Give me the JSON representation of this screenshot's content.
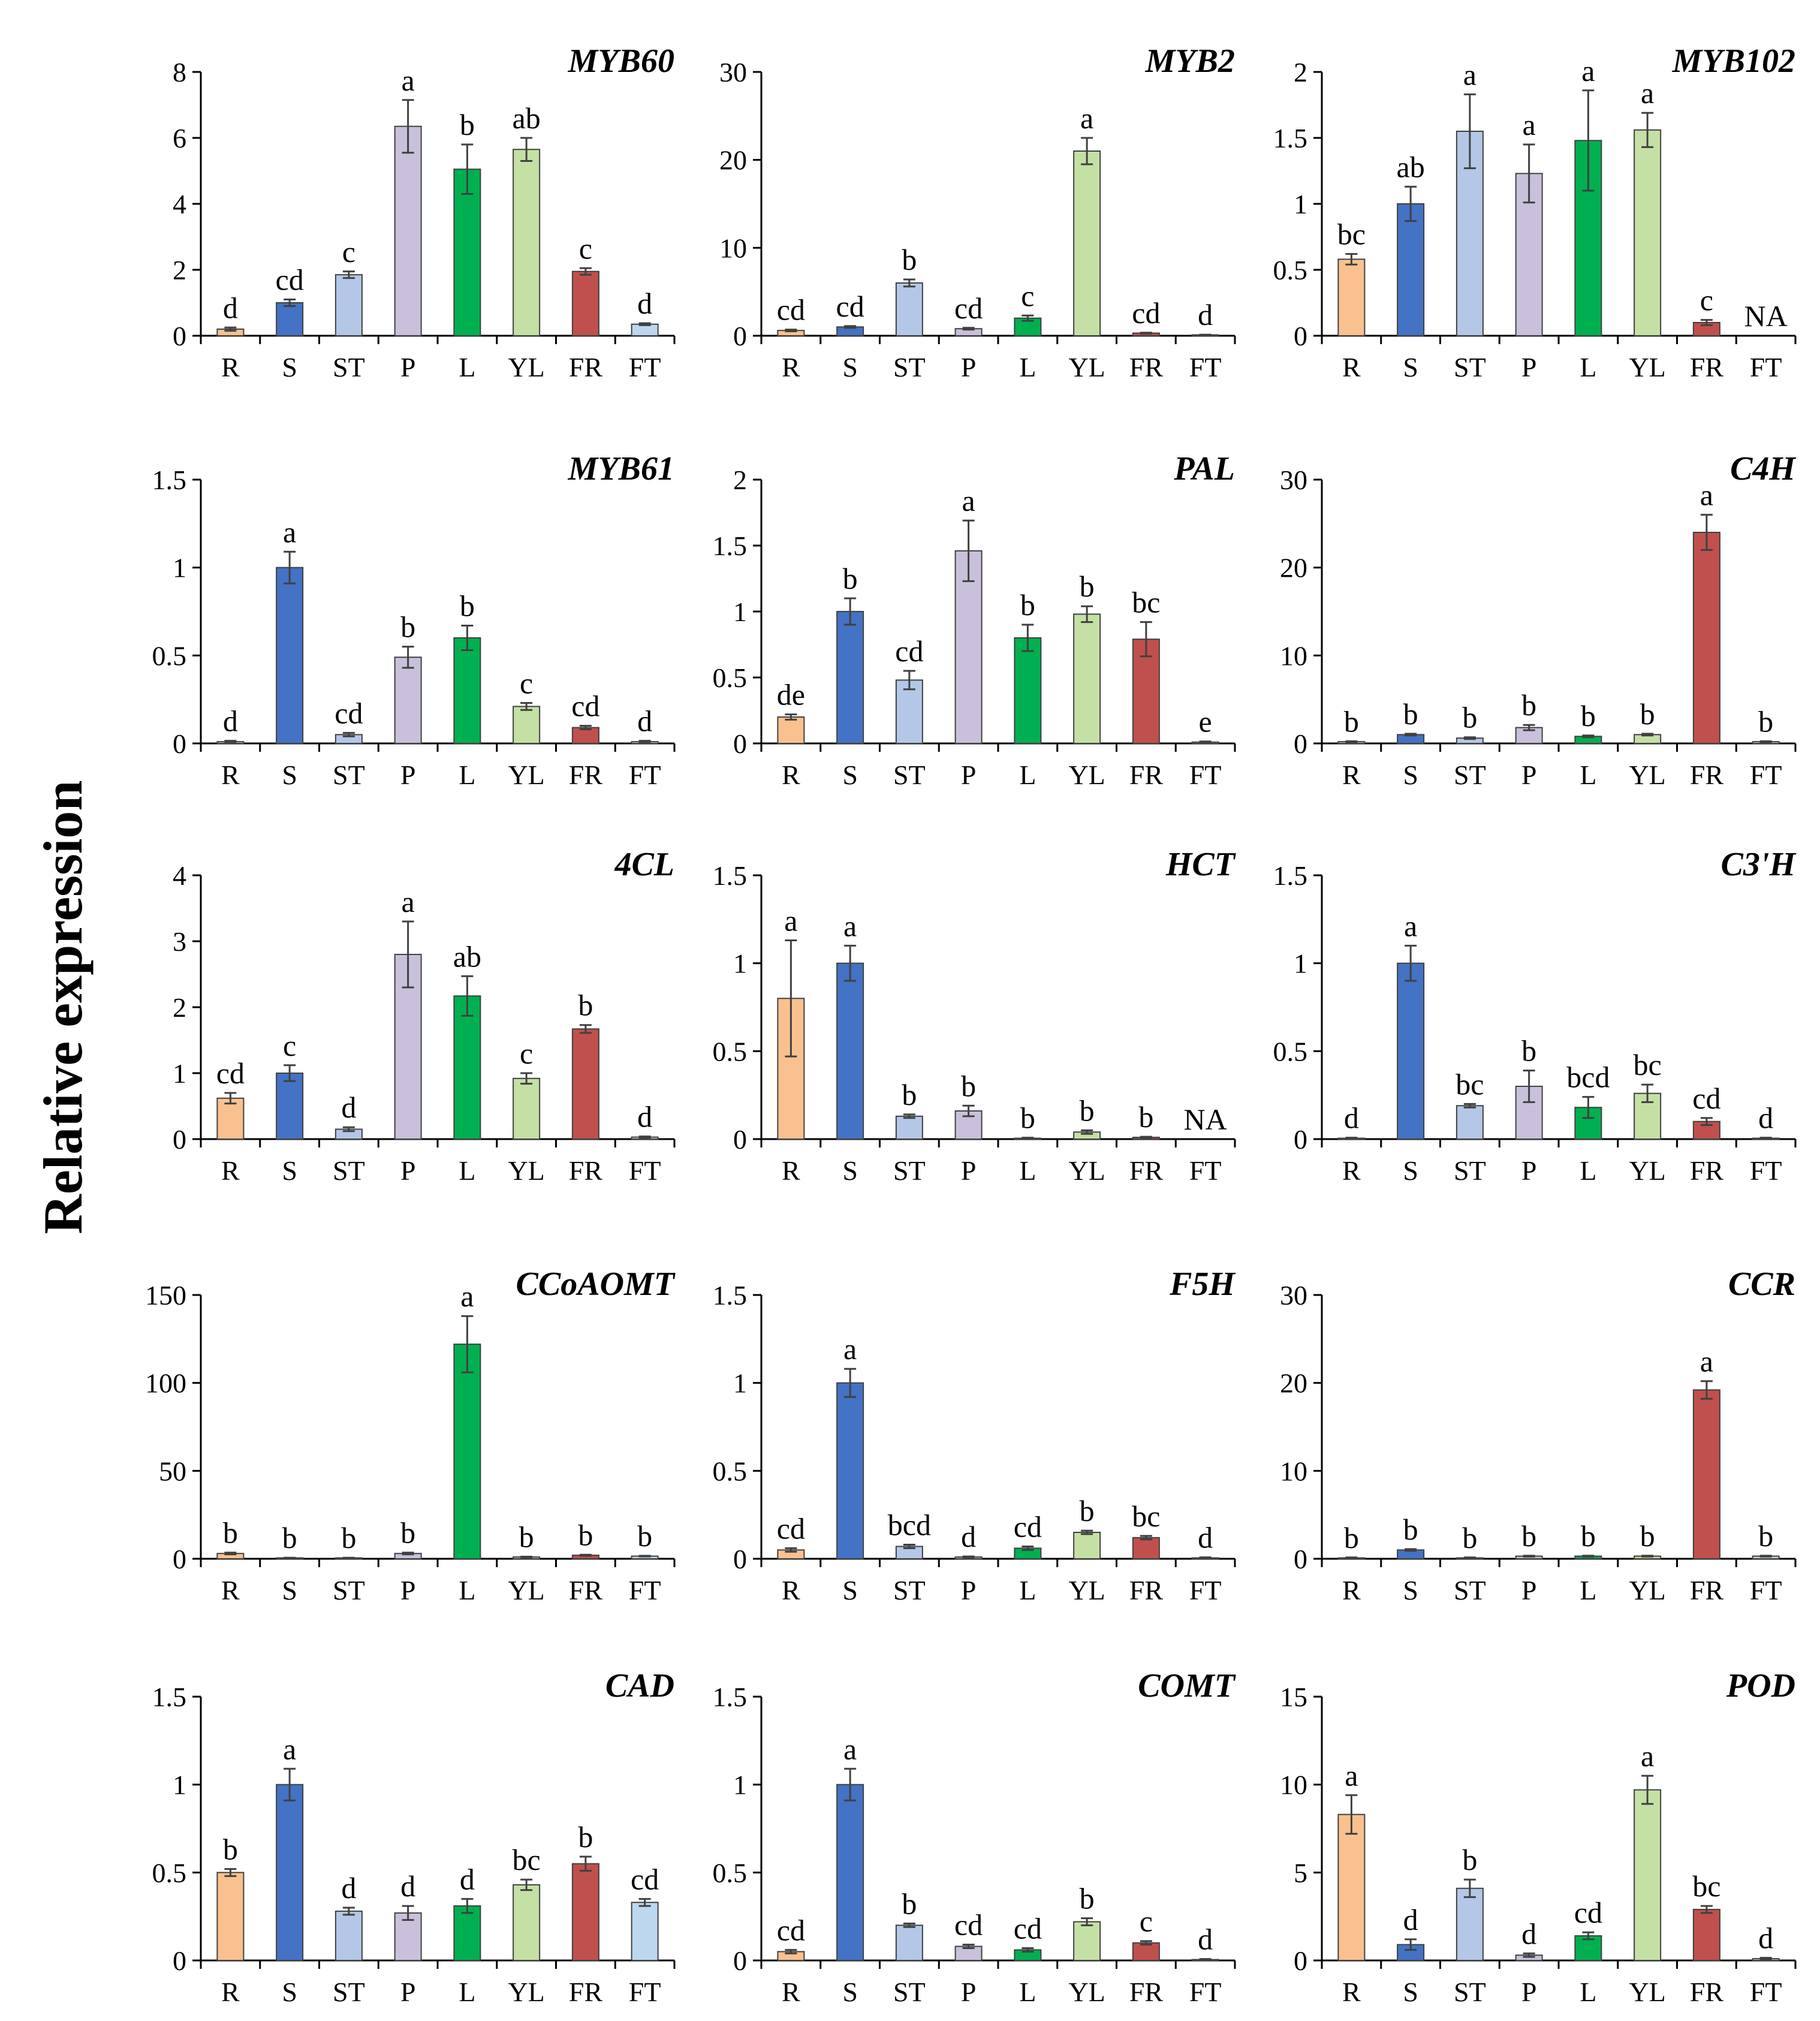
{
  "figure": {
    "ylabel": "Relative expression"
  },
  "chart_data": [
    {
      "type": "bar",
      "title": "MYB60",
      "categories": [
        "R",
        "S",
        "ST",
        "P",
        "L",
        "YL",
        "FR",
        "FT"
      ],
      "values": [
        0.2,
        1.0,
        1.85,
        6.35,
        5.05,
        5.65,
        1.95,
        0.35
      ],
      "errors": [
        0.05,
        0.1,
        0.1,
        0.8,
        0.75,
        0.35,
        0.1,
        0.03
      ],
      "letters": [
        "d",
        "cd",
        "c",
        "a",
        "b",
        "ab",
        "c",
        "d"
      ],
      "ylim": [
        0,
        8
      ],
      "yticks": [
        "0",
        "2",
        "4",
        "6",
        "8"
      ]
    },
    {
      "type": "bar",
      "title": "MYB2",
      "categories": [
        "R",
        "S",
        "ST",
        "P",
        "L",
        "YL",
        "FR",
        "FT"
      ],
      "values": [
        0.6,
        1.0,
        6.0,
        0.8,
        2.0,
        21.0,
        0.3,
        0.1
      ],
      "errors": [
        0.1,
        0.1,
        0.4,
        0.1,
        0.3,
        1.5,
        0.05,
        0.02
      ],
      "letters": [
        "cd",
        "cd",
        "b",
        "cd",
        "c",
        "a",
        "cd",
        "d"
      ],
      "ylim": [
        0,
        30
      ],
      "yticks": [
        "0",
        "10",
        "20",
        "30"
      ]
    },
    {
      "type": "bar",
      "title": "MYB102",
      "categories": [
        "R",
        "S",
        "ST",
        "P",
        "L",
        "YL",
        "FR",
        "FT"
      ],
      "values": [
        0.58,
        1.0,
        1.55,
        1.23,
        1.48,
        1.56,
        0.1,
        0
      ],
      "errors": [
        0.04,
        0.13,
        0.28,
        0.22,
        0.38,
        0.13,
        0.02,
        0
      ],
      "letters": [
        "bc",
        "ab",
        "a",
        "a",
        "a",
        "a",
        "c",
        "NA"
      ],
      "ylim": [
        0,
        2
      ],
      "yticks": [
        "0",
        "0.5",
        "1",
        "1.5",
        "2"
      ]
    },
    {
      "type": "bar",
      "title": "MYB61",
      "categories": [
        "R",
        "S",
        "ST",
        "P",
        "L",
        "YL",
        "FR",
        "FT"
      ],
      "values": [
        0.01,
        1.0,
        0.05,
        0.49,
        0.6,
        0.21,
        0.09,
        0.01
      ],
      "errors": [
        0.005,
        0.09,
        0.01,
        0.06,
        0.07,
        0.02,
        0.01,
        0.005
      ],
      "letters": [
        "d",
        "a",
        "cd",
        "b",
        "b",
        "c",
        "cd",
        "d"
      ],
      "ylim": [
        0,
        1.5
      ],
      "yticks": [
        "0",
        "0.5",
        "1",
        "1.5"
      ]
    },
    {
      "type": "bar",
      "title": "PAL",
      "categories": [
        "R",
        "S",
        "ST",
        "P",
        "L",
        "YL",
        "FR",
        "FT"
      ],
      "values": [
        0.2,
        1.0,
        0.48,
        1.46,
        0.8,
        0.98,
        0.79,
        0.01
      ],
      "errors": [
        0.02,
        0.1,
        0.07,
        0.23,
        0.1,
        0.06,
        0.13,
        0.005
      ],
      "letters": [
        "de",
        "b",
        "cd",
        "a",
        "b",
        "b",
        "bc",
        "e"
      ],
      "ylim": [
        0,
        2
      ],
      "yticks": [
        "0",
        "0.5",
        "1",
        "1.5",
        "2"
      ]
    },
    {
      "type": "bar",
      "title": "C4H",
      "categories": [
        "R",
        "S",
        "ST",
        "P",
        "L",
        "YL",
        "FR",
        "FT"
      ],
      "values": [
        0.2,
        1.0,
        0.6,
        1.8,
        0.8,
        1.0,
        24.0,
        0.2
      ],
      "errors": [
        0.05,
        0.1,
        0.1,
        0.3,
        0.1,
        0.1,
        2.0,
        0.05
      ],
      "letters": [
        "b",
        "b",
        "b",
        "b",
        "b",
        "b",
        "a",
        "b"
      ],
      "ylim": [
        0,
        30
      ],
      "yticks": [
        "0",
        "10",
        "20",
        "30"
      ]
    },
    {
      "type": "bar",
      "title": "4CL",
      "categories": [
        "R",
        "S",
        "ST",
        "P",
        "L",
        "YL",
        "FR",
        "FT"
      ],
      "values": [
        0.62,
        1.0,
        0.15,
        2.8,
        2.17,
        0.92,
        1.67,
        0.03
      ],
      "errors": [
        0.08,
        0.12,
        0.03,
        0.5,
        0.3,
        0.08,
        0.06,
        0.01
      ],
      "letters": [
        "cd",
        "c",
        "d",
        "a",
        "ab",
        "c",
        "b",
        "d"
      ],
      "ylim": [
        0,
        4
      ],
      "yticks": [
        "0",
        "1",
        "2",
        "3",
        "4"
      ]
    },
    {
      "type": "bar",
      "title": "HCT",
      "categories": [
        "R",
        "S",
        "ST",
        "P",
        "L",
        "YL",
        "FR",
        "FT"
      ],
      "values": [
        0.8,
        1.0,
        0.13,
        0.16,
        0.005,
        0.04,
        0.01,
        0
      ],
      "errors": [
        0.33,
        0.1,
        0.01,
        0.03,
        0.003,
        0.01,
        0.003,
        0
      ],
      "letters": [
        "a",
        "a",
        "b",
        "b",
        "b",
        "b",
        "b",
        "NA"
      ],
      "ylim": [
        0,
        1.5
      ],
      "yticks": [
        "0",
        "0.5",
        "1",
        "1.5"
      ]
    },
    {
      "type": "bar",
      "title": "C3'H",
      "categories": [
        "R",
        "S",
        "ST",
        "P",
        "L",
        "YL",
        "FR",
        "FT"
      ],
      "values": [
        0.005,
        1.0,
        0.19,
        0.3,
        0.18,
        0.26,
        0.1,
        0.005
      ],
      "errors": [
        0.003,
        0.1,
        0.01,
        0.09,
        0.06,
        0.05,
        0.02,
        0.003
      ],
      "letters": [
        "d",
        "a",
        "bc",
        "b",
        "bcd",
        "bc",
        "cd",
        "d"
      ],
      "ylim": [
        0,
        1.5
      ],
      "yticks": [
        "0",
        "0.5",
        "1",
        "1.5"
      ]
    },
    {
      "type": "bar",
      "title": "CCoAOMT",
      "categories": [
        "R",
        "S",
        "ST",
        "P",
        "L",
        "YL",
        "FR",
        "FT"
      ],
      "values": [
        3.0,
        0.5,
        0.5,
        3.0,
        122.0,
        1.0,
        2.0,
        1.5
      ],
      "errors": [
        0.5,
        0.1,
        0.1,
        0.5,
        16.0,
        0.2,
        0.3,
        0.2
      ],
      "letters": [
        "b",
        "b",
        "b",
        "b",
        "a",
        "b",
        "b",
        "b"
      ],
      "ylim": [
        0,
        150
      ],
      "yticks": [
        "0",
        "50",
        "100",
        "150"
      ]
    },
    {
      "type": "bar",
      "title": "F5H",
      "categories": [
        "R",
        "S",
        "ST",
        "P",
        "L",
        "YL",
        "FR",
        "FT"
      ],
      "values": [
        0.05,
        1.0,
        0.07,
        0.01,
        0.06,
        0.15,
        0.12,
        0.005
      ],
      "errors": [
        0.01,
        0.08,
        0.01,
        0.003,
        0.01,
        0.01,
        0.01,
        0.003
      ],
      "letters": [
        "cd",
        "a",
        "bcd",
        "d",
        "cd",
        "b",
        "bc",
        "d"
      ],
      "ylim": [
        0,
        1.5
      ],
      "yticks": [
        "0",
        "0.5",
        "1",
        "1.5"
      ]
    },
    {
      "type": "bar",
      "title": "CCR",
      "categories": [
        "R",
        "S",
        "ST",
        "P",
        "L",
        "YL",
        "FR",
        "FT"
      ],
      "values": [
        0.1,
        1.0,
        0.1,
        0.3,
        0.3,
        0.3,
        19.2,
        0.3
      ],
      "errors": [
        0.05,
        0.1,
        0.05,
        0.05,
        0.05,
        0.05,
        1.0,
        0.05
      ],
      "letters": [
        "b",
        "b",
        "b",
        "b",
        "b",
        "b",
        "a",
        "b"
      ],
      "ylim": [
        0,
        30
      ],
      "yticks": [
        "0",
        "10",
        "20",
        "30"
      ]
    },
    {
      "type": "bar",
      "title": "CAD",
      "categories": [
        "R",
        "S",
        "ST",
        "P",
        "L",
        "YL",
        "FR",
        "FT"
      ],
      "values": [
        0.5,
        1.0,
        0.28,
        0.27,
        0.31,
        0.43,
        0.55,
        0.33
      ],
      "errors": [
        0.02,
        0.09,
        0.02,
        0.04,
        0.04,
        0.03,
        0.04,
        0.02
      ],
      "letters": [
        "b",
        "a",
        "d",
        "d",
        "d",
        "bc",
        "b",
        "cd"
      ],
      "ylim": [
        0,
        1.5
      ],
      "yticks": [
        "0",
        "0.5",
        "1",
        "1.5"
      ]
    },
    {
      "type": "bar",
      "title": "COMT",
      "categories": [
        "R",
        "S",
        "ST",
        "P",
        "L",
        "YL",
        "FR",
        "FT"
      ],
      "values": [
        0.05,
        1.0,
        0.2,
        0.08,
        0.06,
        0.22,
        0.1,
        0.005
      ],
      "errors": [
        0.01,
        0.09,
        0.01,
        0.01,
        0.01,
        0.02,
        0.01,
        0.003
      ],
      "letters": [
        "cd",
        "a",
        "b",
        "cd",
        "cd",
        "b",
        "c",
        "d"
      ],
      "ylim": [
        0,
        1.5
      ],
      "yticks": [
        "0",
        "0.5",
        "1",
        "1.5"
      ]
    },
    {
      "type": "bar",
      "title": "POD",
      "categories": [
        "R",
        "S",
        "ST",
        "P",
        "L",
        "YL",
        "FR",
        "FT"
      ],
      "values": [
        8.3,
        0.9,
        4.1,
        0.3,
        1.4,
        9.7,
        2.9,
        0.1
      ],
      "errors": [
        1.1,
        0.3,
        0.5,
        0.1,
        0.2,
        0.8,
        0.2,
        0.05
      ],
      "letters": [
        "a",
        "d",
        "b",
        "d",
        "cd",
        "a",
        "bc",
        "d"
      ],
      "ylim": [
        0,
        15
      ],
      "yticks": [
        "0",
        "5",
        "10",
        "15"
      ]
    }
  ],
  "colors": {
    "R": "#f9c18f",
    "S": "#4472c4",
    "ST": "#b4c7e7",
    "P": "#c9c1db",
    "L": "#00b050",
    "YL": "#c5e0a5",
    "FR": "#c0504d",
    "FT": "#bdd7ee",
    "bar_outline": "#404040",
    "axis": "#000000",
    "text": "#000000"
  }
}
